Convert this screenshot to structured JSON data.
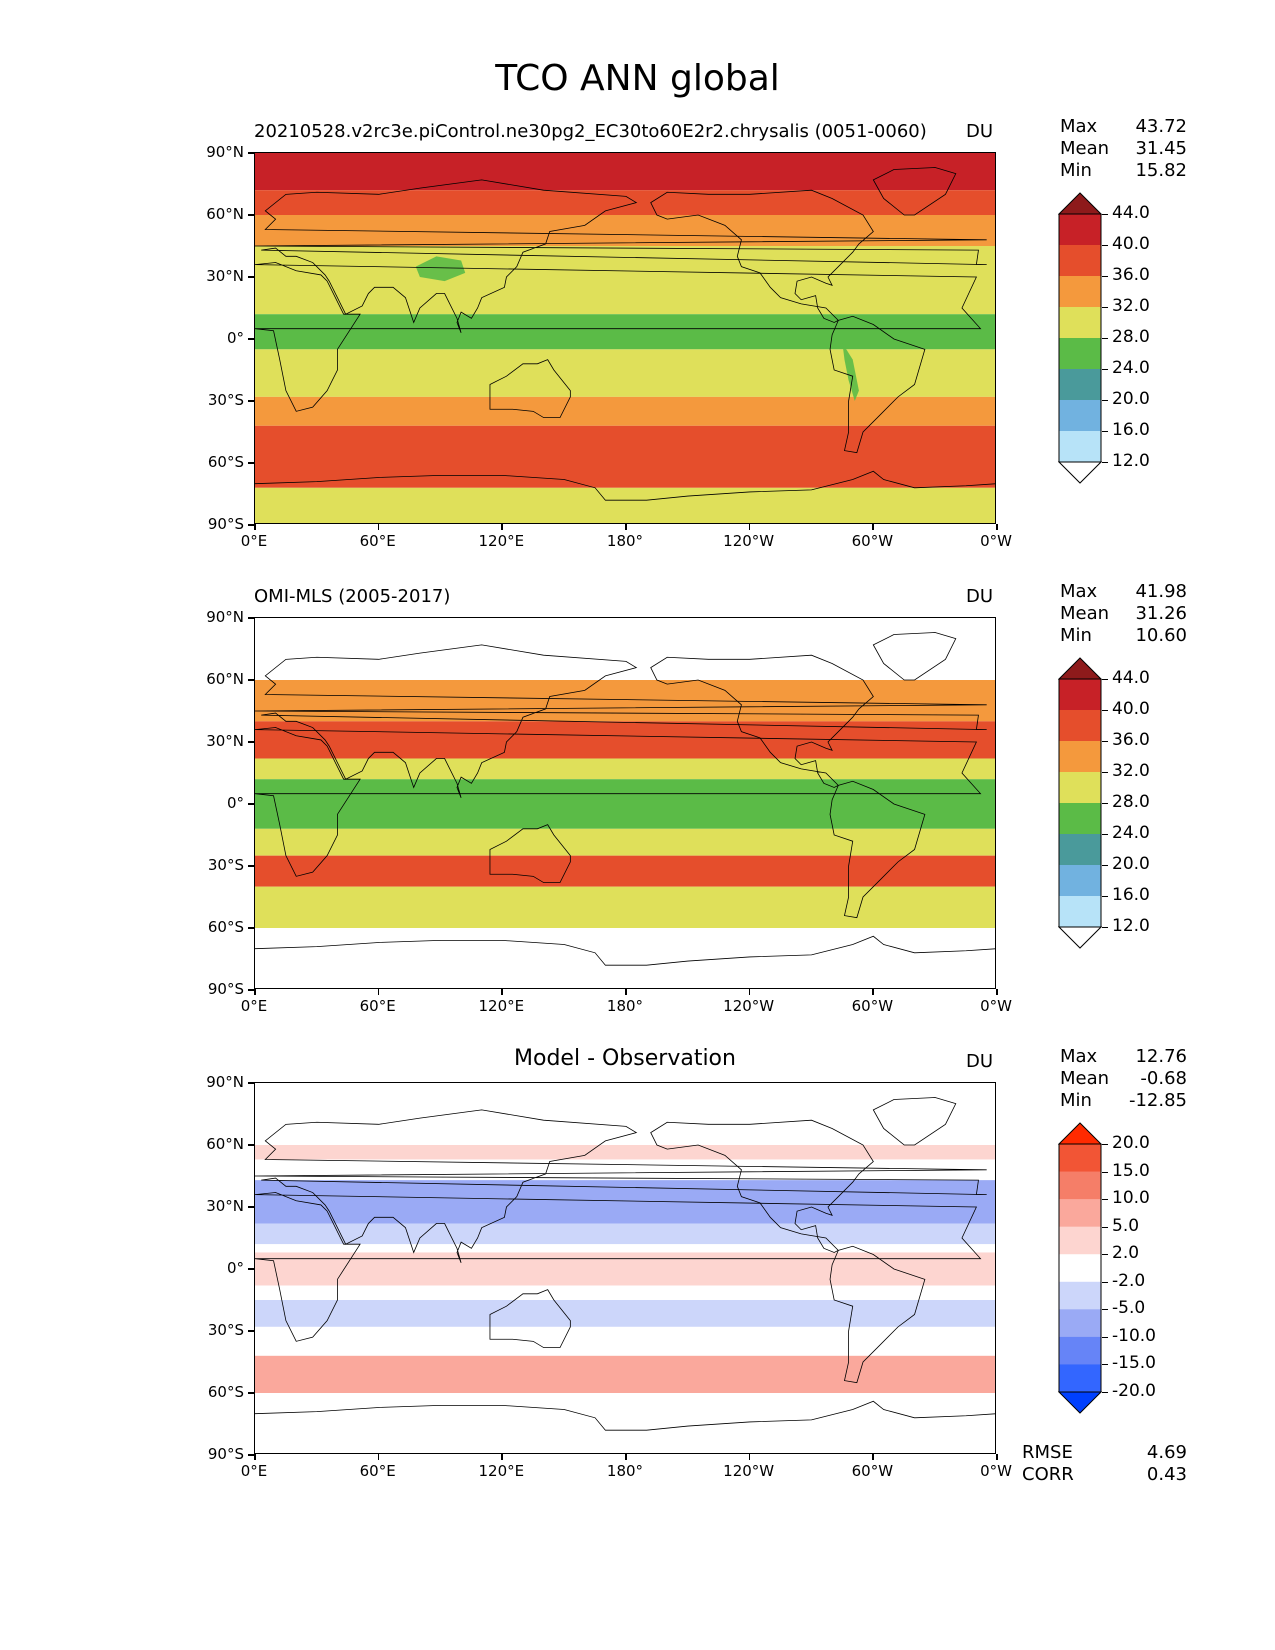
{
  "title": "TCO ANN global",
  "panels": [
    {
      "id": "model",
      "title": "20210528.v2rc3e.piControl.ne30pg2_EC30to60E2r2.chrysalis (0051-0060)",
      "title_style": "left",
      "units": "DU",
      "stats": {
        "max_label": "Max",
        "max": "43.72",
        "mean_label": "Mean",
        "mean": "31.45",
        "min_label": "Min",
        "min": "15.82"
      },
      "colorbar": {
        "colors": [
          "#ffffff",
          "#b7e3f8",
          "#71b2e0",
          "#4a9a9b",
          "#5bbb47",
          "#dfe05a",
          "#f4993d",
          "#e54e2c",
          "#c72127",
          "#8e1a1b"
        ],
        "labels": [
          "12.0",
          "16.0",
          "20.0",
          "24.0",
          "28.0",
          "32.0",
          "36.0",
          "40.0",
          "44.0"
        ]
      },
      "bands": [
        {
          "from": 90,
          "to": 72,
          "color": "#c72127"
        },
        {
          "from": 72,
          "to": 60,
          "color": "#e54e2c"
        },
        {
          "from": 60,
          "to": 45,
          "color": "#f4993d"
        },
        {
          "from": 45,
          "to": 12,
          "color": "#dfe05a"
        },
        {
          "from": 12,
          "to": -5,
          "color": "#5bbb47"
        },
        {
          "from": -5,
          "to": -28,
          "color": "#dfe05a"
        },
        {
          "from": -28,
          "to": -42,
          "color": "#f4993d"
        },
        {
          "from": -42,
          "to": -72,
          "color": "#e54e2c"
        },
        {
          "from": -72,
          "to": -90,
          "color": "#dfe05a"
        }
      ]
    },
    {
      "id": "obs",
      "title": "OMI-MLS (2005-2017)",
      "title_style": "left",
      "units": "DU",
      "stats": {
        "max_label": "Max",
        "max": "41.98",
        "mean_label": "Mean",
        "mean": "31.26",
        "min_label": "Min",
        "min": "10.60"
      },
      "colorbar": {
        "colors": [
          "#ffffff",
          "#b7e3f8",
          "#71b2e0",
          "#4a9a9b",
          "#5bbb47",
          "#dfe05a",
          "#f4993d",
          "#e54e2c",
          "#c72127",
          "#8e1a1b"
        ],
        "labels": [
          "12.0",
          "16.0",
          "20.0",
          "24.0",
          "28.0",
          "32.0",
          "36.0",
          "40.0",
          "44.0"
        ]
      },
      "bands": [
        {
          "from": 90,
          "to": 60,
          "color": "#ffffff"
        },
        {
          "from": 60,
          "to": 40,
          "color": "#f4993d"
        },
        {
          "from": 40,
          "to": 22,
          "color": "#e54e2c"
        },
        {
          "from": 22,
          "to": 12,
          "color": "#dfe05a"
        },
        {
          "from": 12,
          "to": -12,
          "color": "#5bbb47"
        },
        {
          "from": -12,
          "to": -25,
          "color": "#dfe05a"
        },
        {
          "from": -25,
          "to": -40,
          "color": "#e54e2c"
        },
        {
          "from": -40,
          "to": -60,
          "color": "#dfe05a"
        },
        {
          "from": -60,
          "to": -90,
          "color": "#ffffff"
        }
      ]
    },
    {
      "id": "diff",
      "title": "Model - Observation",
      "title_style": "center",
      "units": "DU",
      "stats": {
        "max_label": "Max",
        "max": "12.76",
        "mean_label": "Mean",
        "mean": "-0.68",
        "min_label": "Min",
        "min": "-12.85"
      },
      "colorbar": {
        "colors": [
          "#0040ff",
          "#3366ff",
          "#6684f7",
          "#9aaaf5",
          "#ccd6fa",
          "#ffffff",
          "#fdd5d0",
          "#faa89c",
          "#f57e68",
          "#f25535",
          "#ff2a00"
        ],
        "labels": [
          "-20.0",
          "-15.0",
          "-10.0",
          "-5.0",
          "-2.0",
          "2.0",
          "5.0",
          "10.0",
          "15.0",
          "20.0"
        ]
      },
      "bands": [
        {
          "from": 90,
          "to": 60,
          "color": "#ffffff"
        },
        {
          "from": 60,
          "to": 53,
          "color": "#fdd5d0"
        },
        {
          "from": 53,
          "to": 43,
          "color": "#ffffff"
        },
        {
          "from": 43,
          "to": 22,
          "color": "#9aaaf5"
        },
        {
          "from": 22,
          "to": 12,
          "color": "#ccd6fa"
        },
        {
          "from": 12,
          "to": 8,
          "color": "#ffffff"
        },
        {
          "from": 8,
          "to": -8,
          "color": "#fdd5d0"
        },
        {
          "from": -8,
          "to": -15,
          "color": "#ffffff"
        },
        {
          "from": -15,
          "to": -28,
          "color": "#ccd6fa"
        },
        {
          "from": -28,
          "to": -42,
          "color": "#ffffff"
        },
        {
          "from": -42,
          "to": -60,
          "color": "#faa89c"
        },
        {
          "from": -60,
          "to": -90,
          "color": "#ffffff"
        }
      ],
      "footer": {
        "rmse_label": "RMSE",
        "rmse": "4.69",
        "corr_label": "CORR",
        "corr": "0.43"
      }
    }
  ],
  "lat_ticks": [
    "90°N",
    "60°N",
    "30°N",
    "0°",
    "30°S",
    "60°S",
    "90°S"
  ],
  "lon_ticks": [
    "0°E",
    "60°E",
    "120°E",
    "180°",
    "120°W",
    "60°W",
    "0°W"
  ]
}
